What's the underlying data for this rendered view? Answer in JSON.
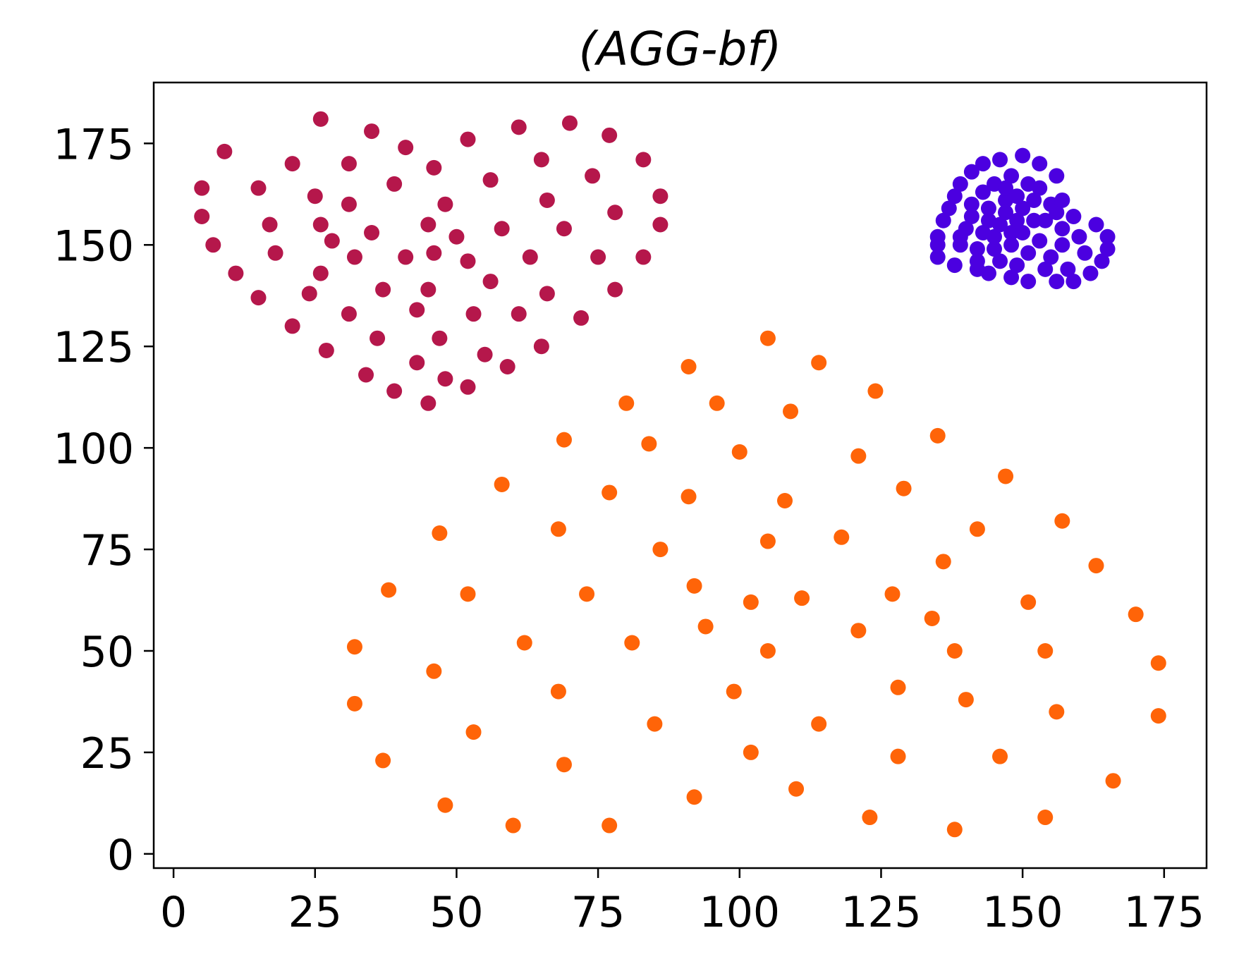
{
  "chart_data": {
    "type": "scatter",
    "title": "(AGG-bf)",
    "xlabel": "",
    "ylabel": "",
    "xlim": [
      -3.5,
      182.5
    ],
    "ylim": [
      -3.5,
      190
    ],
    "xticks": [
      0,
      25,
      50,
      75,
      100,
      125,
      150,
      175
    ],
    "yticks": [
      0,
      25,
      50,
      75,
      100,
      125,
      150,
      175
    ],
    "grid": false,
    "legend": "none",
    "series": [
      {
        "color": "#b5174b",
        "points": [
          [
            5,
            164
          ],
          [
            5,
            157
          ],
          [
            7,
            150
          ],
          [
            9,
            173
          ],
          [
            11,
            143
          ],
          [
            15,
            164
          ],
          [
            15,
            137
          ],
          [
            17,
            155
          ],
          [
            18,
            148
          ],
          [
            21,
            170
          ],
          [
            21,
            130
          ],
          [
            24,
            138
          ],
          [
            25,
            162
          ],
          [
            26,
            181
          ],
          [
            26,
            155
          ],
          [
            26,
            143
          ],
          [
            27,
            124
          ],
          [
            28,
            151
          ],
          [
            31,
            170
          ],
          [
            31,
            160
          ],
          [
            31,
            133
          ],
          [
            32,
            147
          ],
          [
            34,
            118
          ],
          [
            35,
            178
          ],
          [
            35,
            153
          ],
          [
            36,
            127
          ],
          [
            37,
            139
          ],
          [
            39,
            165
          ],
          [
            39,
            114
          ],
          [
            41,
            147
          ],
          [
            41,
            174
          ],
          [
            43,
            121
          ],
          [
            43,
            134
          ],
          [
            45,
            155
          ],
          [
            45,
            139
          ],
          [
            45,
            111
          ],
          [
            46,
            148
          ],
          [
            46,
            169
          ],
          [
            47,
            127
          ],
          [
            48,
            160
          ],
          [
            48,
            117
          ],
          [
            50,
            152
          ],
          [
            52,
            176
          ],
          [
            52,
            146
          ],
          [
            52,
            115
          ],
          [
            53,
            133
          ],
          [
            55,
            123
          ],
          [
            56,
            141
          ],
          [
            56,
            166
          ],
          [
            58,
            154
          ],
          [
            59,
            120
          ],
          [
            61,
            179
          ],
          [
            61,
            133
          ],
          [
            63,
            147
          ],
          [
            65,
            125
          ],
          [
            65,
            171
          ],
          [
            66,
            161
          ],
          [
            66,
            138
          ],
          [
            69,
            154
          ],
          [
            70,
            180
          ],
          [
            72,
            132
          ],
          [
            74,
            167
          ],
          [
            75,
            147
          ],
          [
            77,
            177
          ],
          [
            78,
            139
          ],
          [
            78,
            158
          ],
          [
            83,
            171
          ],
          [
            83,
            147
          ],
          [
            86,
            162
          ],
          [
            86,
            155
          ]
        ]
      },
      {
        "color": "#4b00e0",
        "points": [
          [
            135,
            147
          ],
          [
            135,
            150
          ],
          [
            135,
            152
          ],
          [
            136,
            156
          ],
          [
            137,
            159
          ],
          [
            138,
            145
          ],
          [
            138,
            162
          ],
          [
            139,
            152
          ],
          [
            139,
            165
          ],
          [
            139,
            150
          ],
          [
            140,
            154
          ],
          [
            141,
            157
          ],
          [
            141,
            160
          ],
          [
            141,
            168
          ],
          [
            142,
            144
          ],
          [
            142,
            149
          ],
          [
            142,
            146
          ],
          [
            143,
            153
          ],
          [
            143,
            163
          ],
          [
            143,
            170
          ],
          [
            144,
            156
          ],
          [
            144,
            159
          ],
          [
            144,
            143
          ],
          [
            145,
            165
          ],
          [
            145,
            149
          ],
          [
            145,
            152
          ],
          [
            146,
            171
          ],
          [
            146,
            155
          ],
          [
            146,
            146
          ],
          [
            147,
            161
          ],
          [
            147,
            164
          ],
          [
            147,
            158
          ],
          [
            148,
            153
          ],
          [
            148,
            167
          ],
          [
            148,
            150
          ],
          [
            148,
            142
          ],
          [
            149,
            145
          ],
          [
            149,
            162
          ],
          [
            149,
            156
          ],
          [
            150,
            172
          ],
          [
            150,
            159
          ],
          [
            150,
            153
          ],
          [
            151,
            148
          ],
          [
            151,
            165
          ],
          [
            151,
            141
          ],
          [
            152,
            156
          ],
          [
            152,
            161
          ],
          [
            153,
            170
          ],
          [
            153,
            151
          ],
          [
            153,
            164
          ],
          [
            154,
            144
          ],
          [
            154,
            156
          ],
          [
            155,
            147
          ],
          [
            155,
            160
          ],
          [
            156,
            141
          ],
          [
            156,
            167
          ],
          [
            156,
            158
          ],
          [
            157,
            150
          ],
          [
            157,
            154
          ],
          [
            157,
            161
          ],
          [
            158,
            144
          ],
          [
            159,
            141
          ],
          [
            159,
            157
          ],
          [
            160,
            152
          ],
          [
            161,
            148
          ],
          [
            162,
            143
          ],
          [
            163,
            155
          ],
          [
            164,
            146
          ],
          [
            165,
            152
          ],
          [
            165,
            149
          ]
        ]
      },
      {
        "color": "#ff6408",
        "points": [
          [
            32,
            51
          ],
          [
            32,
            37
          ],
          [
            37,
            23
          ],
          [
            38,
            65
          ],
          [
            46,
            45
          ],
          [
            47,
            79
          ],
          [
            48,
            12
          ],
          [
            52,
            64
          ],
          [
            53,
            30
          ],
          [
            58,
            91
          ],
          [
            60,
            7
          ],
          [
            62,
            52
          ],
          [
            68,
            80
          ],
          [
            68,
            40
          ],
          [
            69,
            22
          ],
          [
            69,
            102
          ],
          [
            73,
            64
          ],
          [
            77,
            89
          ],
          [
            77,
            7
          ],
          [
            80,
            111
          ],
          [
            81,
            52
          ],
          [
            84,
            101
          ],
          [
            85,
            32
          ],
          [
            86,
            75
          ],
          [
            91,
            88
          ],
          [
            91,
            120
          ],
          [
            92,
            66
          ],
          [
            92,
            14
          ],
          [
            94,
            56
          ],
          [
            96,
            111
          ],
          [
            99,
            40
          ],
          [
            100,
            99
          ],
          [
            102,
            62
          ],
          [
            102,
            25
          ],
          [
            105,
            127
          ],
          [
            105,
            77
          ],
          [
            105,
            50
          ],
          [
            108,
            87
          ],
          [
            109,
            109
          ],
          [
            110,
            16
          ],
          [
            111,
            63
          ],
          [
            114,
            121
          ],
          [
            114,
            32
          ],
          [
            118,
            78
          ],
          [
            121,
            98
          ],
          [
            121,
            55
          ],
          [
            123,
            9
          ],
          [
            124,
            114
          ],
          [
            127,
            64
          ],
          [
            128,
            41
          ],
          [
            128,
            24
          ],
          [
            129,
            90
          ],
          [
            134,
            58
          ],
          [
            135,
            103
          ],
          [
            136,
            72
          ],
          [
            138,
            50
          ],
          [
            138,
            6
          ],
          [
            140,
            38
          ],
          [
            142,
            80
          ],
          [
            146,
            24
          ],
          [
            147,
            93
          ],
          [
            151,
            62
          ],
          [
            154,
            50
          ],
          [
            154,
            9
          ],
          [
            156,
            35
          ],
          [
            157,
            82
          ],
          [
            163,
            71
          ],
          [
            166,
            18
          ],
          [
            170,
            59
          ],
          [
            174,
            47
          ],
          [
            174,
            34
          ]
        ]
      }
    ]
  }
}
